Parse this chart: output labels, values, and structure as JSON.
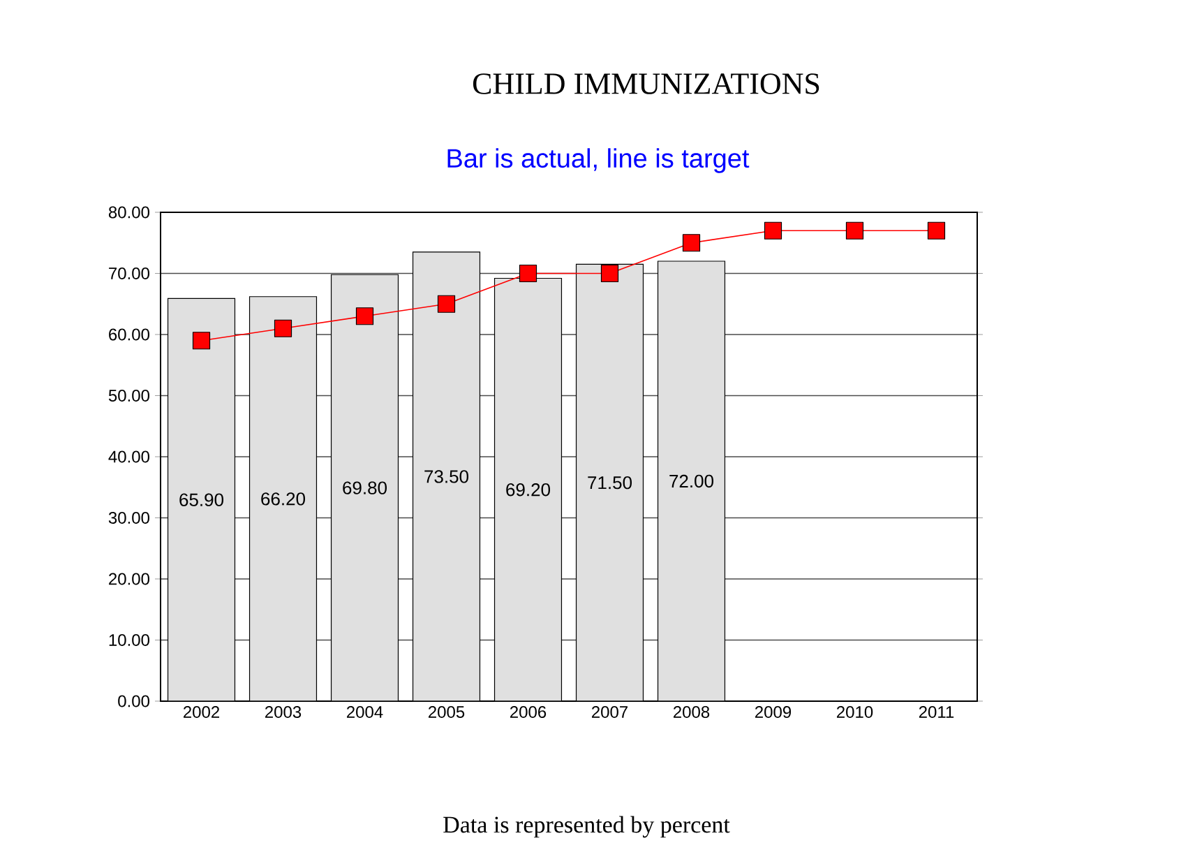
{
  "chart_data": {
    "type": "bar",
    "title": "CHILD IMMUNIZATIONS",
    "subtitle": "Bar is actual, line is target",
    "categories": [
      "2002",
      "2003",
      "2004",
      "2005",
      "2006",
      "2007",
      "2008",
      "2009",
      "2010",
      "2011"
    ],
    "series": [
      {
        "color": "#e0e0e0",
        "values": [
          65.9,
          66.2,
          69.8,
          73.5,
          69.2,
          71.5,
          72.0,
          null,
          null,
          null
        ],
        "value_labels": [
          "65.90",
          "66.20",
          "69.80",
          "73.50",
          "69.20",
          "71.50",
          "72.00",
          null,
          null,
          null
        ]
      },
      {
        "type": "line",
        "color": "#ff0000",
        "marker": "square",
        "values": [
          59,
          61,
          63,
          65,
          70,
          70,
          75,
          77,
          77,
          77
        ]
      }
    ],
    "ylim": [
      0,
      80
    ],
    "yticks": [
      {
        "value": 0,
        "label": "0.00"
      },
      {
        "value": 10,
        "label": "10.00"
      },
      {
        "value": 20,
        "label": "20.00"
      },
      {
        "value": 30,
        "label": "30.00"
      },
      {
        "value": 40,
        "label": "40.00"
      },
      {
        "value": 50,
        "label": "50.00"
      },
      {
        "value": 60,
        "label": "60.00"
      },
      {
        "value": 70,
        "label": "70.00"
      },
      {
        "value": 80,
        "label": "80.00"
      }
    ],
    "grid": "y",
    "annotations": [
      "Data is represented by percent"
    ]
  }
}
